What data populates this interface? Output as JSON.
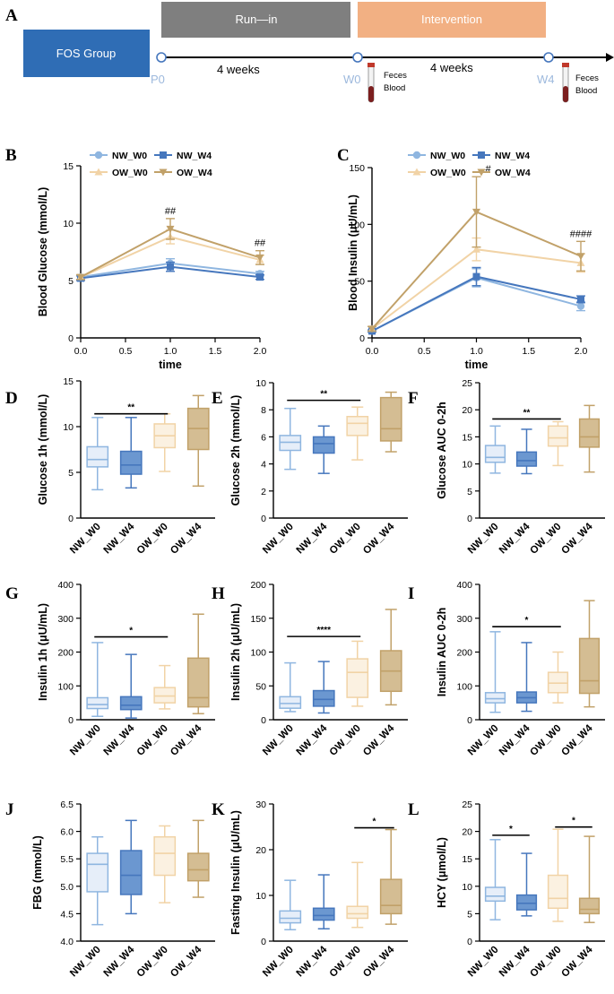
{
  "timeline": {
    "panel": "A",
    "group_label": "FOS Group",
    "runin_label": "Run—in",
    "intervention_label": "Intervention",
    "p0": "P0",
    "w0": "W0",
    "w4": "W4",
    "weeks1": "4  weeks",
    "weeks2": "4  weeks",
    "feces1": "Feces",
    "blood1": "Blood",
    "feces2": "Feces",
    "blood2": "Blood"
  },
  "colors": {
    "NW_W0": "#8fb6e0",
    "NW_W4": "#4677bd",
    "OW_W0": "#f1d3a6",
    "OW_W4": "#c1a169",
    "NW_W0_fill": "#e6eef9",
    "NW_W4_fill": "#6b97d0",
    "OW_W0_fill": "#fbf1e1",
    "OW_W4_fill": "#d4bd93",
    "groupbox": "#2f6db5",
    "runin": "#7f7f7f",
    "intervention": "#f2b083"
  },
  "chart_data": [
    {
      "panel": "B",
      "type": "line",
      "ylabel": "Blood Glucose (mmol/L)",
      "xlabel": "time",
      "x": [
        0.0,
        1.0,
        2.0
      ],
      "xticks": [
        "0.0",
        "0.5",
        "1.0",
        "1.5",
        "2.0"
      ],
      "xlim": [
        0,
        2
      ],
      "ylim": [
        0,
        15
      ],
      "yticks": [
        "0",
        "5",
        "10",
        "15"
      ],
      "legend": [
        "NW_W0",
        "NW_W4",
        "OW_W0",
        "OW_W4"
      ],
      "series": [
        {
          "name": "NW_W0",
          "values": [
            5.3,
            6.5,
            5.6
          ],
          "err": [
            0.2,
            0.4,
            0.2
          ]
        },
        {
          "name": "NW_W4",
          "values": [
            5.2,
            6.2,
            5.3
          ],
          "err": [
            0.2,
            0.4,
            0.2
          ]
        },
        {
          "name": "OW_W0",
          "values": [
            5.3,
            8.8,
            6.8
          ],
          "err": [
            0.2,
            0.6,
            0.4
          ]
        },
        {
          "name": "OW_W4",
          "values": [
            5.3,
            9.5,
            7.0
          ],
          "err": [
            0.2,
            0.9,
            0.6
          ]
        }
      ],
      "annotations": [
        {
          "x": 1.0,
          "text": "##"
        },
        {
          "x": 2.0,
          "text": "##"
        }
      ]
    },
    {
      "panel": "C",
      "type": "line",
      "ylabel": "Blood Insulin (μU/mL)",
      "xlabel": "time",
      "x": [
        0.0,
        1.0,
        2.0
      ],
      "xticks": [
        "0.0",
        "0.5",
        "1.0",
        "1.5",
        "2.0"
      ],
      "xlim": [
        0,
        2
      ],
      "ylim": [
        0,
        150
      ],
      "yticks": [
        "0",
        "50",
        "100",
        "150"
      ],
      "legend": [
        "NW_W0",
        "NW_W4",
        "OW_W0",
        "OW_W4"
      ],
      "series": [
        {
          "name": "NW_W0",
          "values": [
            6,
            53,
            28
          ],
          "err": [
            1,
            8,
            4
          ]
        },
        {
          "name": "NW_W4",
          "values": [
            6,
            54,
            34
          ],
          "err": [
            1,
            8,
            3
          ]
        },
        {
          "name": "OW_W0",
          "values": [
            8,
            78,
            66
          ],
          "err": [
            2,
            10,
            8
          ]
        },
        {
          "name": "OW_W4",
          "values": [
            8,
            111,
            72
          ],
          "err": [
            2,
            31,
            13
          ]
        }
      ],
      "annotations": [
        {
          "x": 1.0,
          "text": "#"
        },
        {
          "x": 2.0,
          "text": "####"
        }
      ]
    },
    {
      "panel": "D",
      "type": "box",
      "ylabel": "Glucose 1h (mmol/L)",
      "categories": [
        "NW_W0",
        "NW_W4",
        "OW_W0",
        "OW_W4"
      ],
      "ylim": [
        0,
        15
      ],
      "yticks": [
        "0",
        "5",
        "10",
        "15"
      ],
      "boxes": [
        {
          "min": 3.1,
          "q1": 5.6,
          "median": 6.4,
          "q3": 7.8,
          "max": 11.0
        },
        {
          "min": 3.3,
          "q1": 4.8,
          "median": 5.8,
          "q3": 7.3,
          "max": 11.0
        },
        {
          "min": 5.1,
          "q1": 7.7,
          "median": 9.0,
          "q3": 10.3,
          "max": 11.4
        },
        {
          "min": 3.5,
          "q1": 7.5,
          "median": 9.8,
          "q3": 12.0,
          "max": 13.4
        }
      ],
      "sig": [
        {
          "from": 0,
          "to": 2,
          "text": "**",
          "y": 11.4
        }
      ]
    },
    {
      "panel": "E",
      "type": "box",
      "ylabel": "Glucose 2h (mmol/L)",
      "categories": [
        "NW_W0",
        "NW_W4",
        "OW_W0",
        "OW_W4"
      ],
      "ylim": [
        0,
        10
      ],
      "yticks": [
        "0",
        "2",
        "4",
        "6",
        "8",
        "10"
      ],
      "boxes": [
        {
          "min": 3.6,
          "q1": 5.0,
          "median": 5.6,
          "q3": 6.1,
          "max": 8.1
        },
        {
          "min": 3.3,
          "q1": 4.8,
          "median": 5.5,
          "q3": 6.0,
          "max": 6.8
        },
        {
          "min": 4.3,
          "q1": 6.1,
          "median": 7.0,
          "q3": 7.5,
          "max": 8.2
        },
        {
          "min": 4.9,
          "q1": 5.7,
          "median": 6.6,
          "q3": 8.9,
          "max": 9.3
        }
      ],
      "sig": [
        {
          "from": 0,
          "to": 2,
          "text": "**",
          "y": 8.7
        }
      ]
    },
    {
      "panel": "F",
      "type": "box",
      "ylabel": "Glucose AUC 0-2h",
      "ylabel_sub": "0-2h",
      "categories": [
        "NW_W0",
        "NW_W4",
        "OW_W0",
        "OW_W4"
      ],
      "ylim": [
        0,
        25
      ],
      "yticks": [
        "0",
        "5",
        "10",
        "15",
        "20",
        "25"
      ],
      "boxes": [
        {
          "min": 8.3,
          "q1": 10.3,
          "median": 11.2,
          "q3": 13.4,
          "max": 17.0
        },
        {
          "min": 8.2,
          "q1": 9.6,
          "median": 10.6,
          "q3": 12.2,
          "max": 16.4
        },
        {
          "min": 9.7,
          "q1": 13.3,
          "median": 14.8,
          "q3": 17.0,
          "max": 17.8
        },
        {
          "min": 8.5,
          "q1": 13.1,
          "median": 15.0,
          "q3": 18.3,
          "max": 20.8
        }
      ],
      "sig": [
        {
          "from": 0,
          "to": 2,
          "text": "**",
          "y": 18.3
        }
      ]
    },
    {
      "panel": "G",
      "type": "box",
      "ylabel": "Insulin 1h (μU/mL)",
      "categories": [
        "NW_W0",
        "NW_W4",
        "OW_W0",
        "OW_W4"
      ],
      "ylim": [
        0,
        400
      ],
      "yticks": [
        "0",
        "100",
        "200",
        "300",
        "400"
      ],
      "boxes": [
        {
          "min": 10,
          "q1": 33,
          "median": 45,
          "q3": 65,
          "max": 228
        },
        {
          "min": 5,
          "q1": 30,
          "median": 43,
          "q3": 68,
          "max": 193
        },
        {
          "min": 32,
          "q1": 50,
          "median": 70,
          "q3": 95,
          "max": 160
        },
        {
          "min": 18,
          "q1": 38,
          "median": 65,
          "q3": 182,
          "max": 312
        }
      ],
      "sig": [
        {
          "from": 0,
          "to": 2,
          "text": "*",
          "y": 245
        }
      ]
    },
    {
      "panel": "H",
      "type": "box",
      "ylabel": "Insulin 2h (μU/mL)",
      "categories": [
        "NW_W0",
        "NW_W4",
        "OW_W0",
        "OW_W4"
      ],
      "ylim": [
        0,
        200
      ],
      "yticks": [
        "0",
        "50",
        "100",
        "150",
        "200"
      ],
      "boxes": [
        {
          "min": 12,
          "q1": 17,
          "median": 24,
          "q3": 34,
          "max": 84
        },
        {
          "min": 10,
          "q1": 20,
          "median": 30,
          "q3": 43,
          "max": 86
        },
        {
          "min": 20,
          "q1": 33,
          "median": 70,
          "q3": 90,
          "max": 116
        },
        {
          "min": 22,
          "q1": 42,
          "median": 72,
          "q3": 102,
          "max": 163
        }
      ],
      "sig": [
        {
          "from": 0,
          "to": 2,
          "text": "****",
          "y": 123
        }
      ]
    },
    {
      "panel": "I",
      "type": "box",
      "ylabel": "Insulin AUC 0-2h",
      "ylabel_sub": "0-2h",
      "categories": [
        "NW_W0",
        "NW_W4",
        "OW_W0",
        "OW_W4"
      ],
      "ylim": [
        0,
        400
      ],
      "yticks": [
        "0",
        "100",
        "200",
        "300",
        "400"
      ],
      "boxes": [
        {
          "min": 22,
          "q1": 50,
          "median": 62,
          "q3": 80,
          "max": 260
        },
        {
          "min": 25,
          "q1": 50,
          "median": 65,
          "q3": 82,
          "max": 228
        },
        {
          "min": 50,
          "q1": 80,
          "median": 108,
          "q3": 140,
          "max": 200
        },
        {
          "min": 38,
          "q1": 78,
          "median": 115,
          "q3": 240,
          "max": 352
        }
      ],
      "sig": [
        {
          "from": 0,
          "to": 2,
          "text": "*",
          "y": 275
        }
      ]
    },
    {
      "panel": "J",
      "type": "box",
      "ylabel": "FBG (mmol/L)",
      "categories": [
        "NW_W0",
        "NW_W4",
        "OW_W0",
        "OW_W4"
      ],
      "ylim": [
        4.0,
        6.5
      ],
      "yticks": [
        "4.0",
        "4.5",
        "5.0",
        "5.5",
        "6.0",
        "6.5"
      ],
      "boxes": [
        {
          "min": 4.3,
          "q1": 4.9,
          "median": 5.4,
          "q3": 5.6,
          "max": 5.9
        },
        {
          "min": 4.5,
          "q1": 4.85,
          "median": 5.2,
          "q3": 5.65,
          "max": 6.2
        },
        {
          "min": 4.7,
          "q1": 5.2,
          "median": 5.6,
          "q3": 5.9,
          "max": 6.1
        },
        {
          "min": 4.8,
          "q1": 5.1,
          "median": 5.3,
          "q3": 5.6,
          "max": 6.2
        }
      ],
      "sig": []
    },
    {
      "panel": "K",
      "type": "box",
      "ylabel": "Fasting Insulin (μU/mL)",
      "categories": [
        "NW_W0",
        "NW_W4",
        "OW_W0",
        "OW_W4"
      ],
      "ylim": [
        0,
        30
      ],
      "yticks": [
        "0",
        "10",
        "20",
        "30"
      ],
      "boxes": [
        {
          "min": 2.5,
          "q1": 4.0,
          "median": 5.0,
          "q3": 6.6,
          "max": 13.3
        },
        {
          "min": 2.7,
          "q1": 4.6,
          "median": 5.6,
          "q3": 7.2,
          "max": 14.5
        },
        {
          "min": 3.0,
          "q1": 5.0,
          "median": 6.0,
          "q3": 7.6,
          "max": 17.2
        },
        {
          "min": 3.7,
          "q1": 6.0,
          "median": 7.8,
          "q3": 13.5,
          "max": 24.4
        }
      ],
      "sig": [
        {
          "from": 2,
          "to": 3,
          "text": "*",
          "y": 24.8
        }
      ]
    },
    {
      "panel": "L",
      "type": "box",
      "ylabel": "HCY (μmol/L)",
      "categories": [
        "NW_W0",
        "NW_W4",
        "OW_W0",
        "OW_W4"
      ],
      "ylim": [
        0,
        25
      ],
      "yticks": [
        "0",
        "5",
        "10",
        "15",
        "20",
        "25"
      ],
      "boxes": [
        {
          "min": 3.9,
          "q1": 7.3,
          "median": 8.2,
          "q3": 9.8,
          "max": 18.5
        },
        {
          "min": 4.6,
          "q1": 5.7,
          "median": 6.9,
          "q3": 8.4,
          "max": 16.0
        },
        {
          "min": 3.6,
          "q1": 6.0,
          "median": 7.8,
          "q3": 12.0,
          "max": 20.4
        },
        {
          "min": 3.4,
          "q1": 5.0,
          "median": 5.8,
          "q3": 7.8,
          "max": 19.1
        }
      ],
      "sig": [
        {
          "from": 0,
          "to": 1,
          "text": "*",
          "y": 19.3
        },
        {
          "from": 2,
          "to": 3,
          "text": "*",
          "y": 20.8
        }
      ]
    }
  ]
}
